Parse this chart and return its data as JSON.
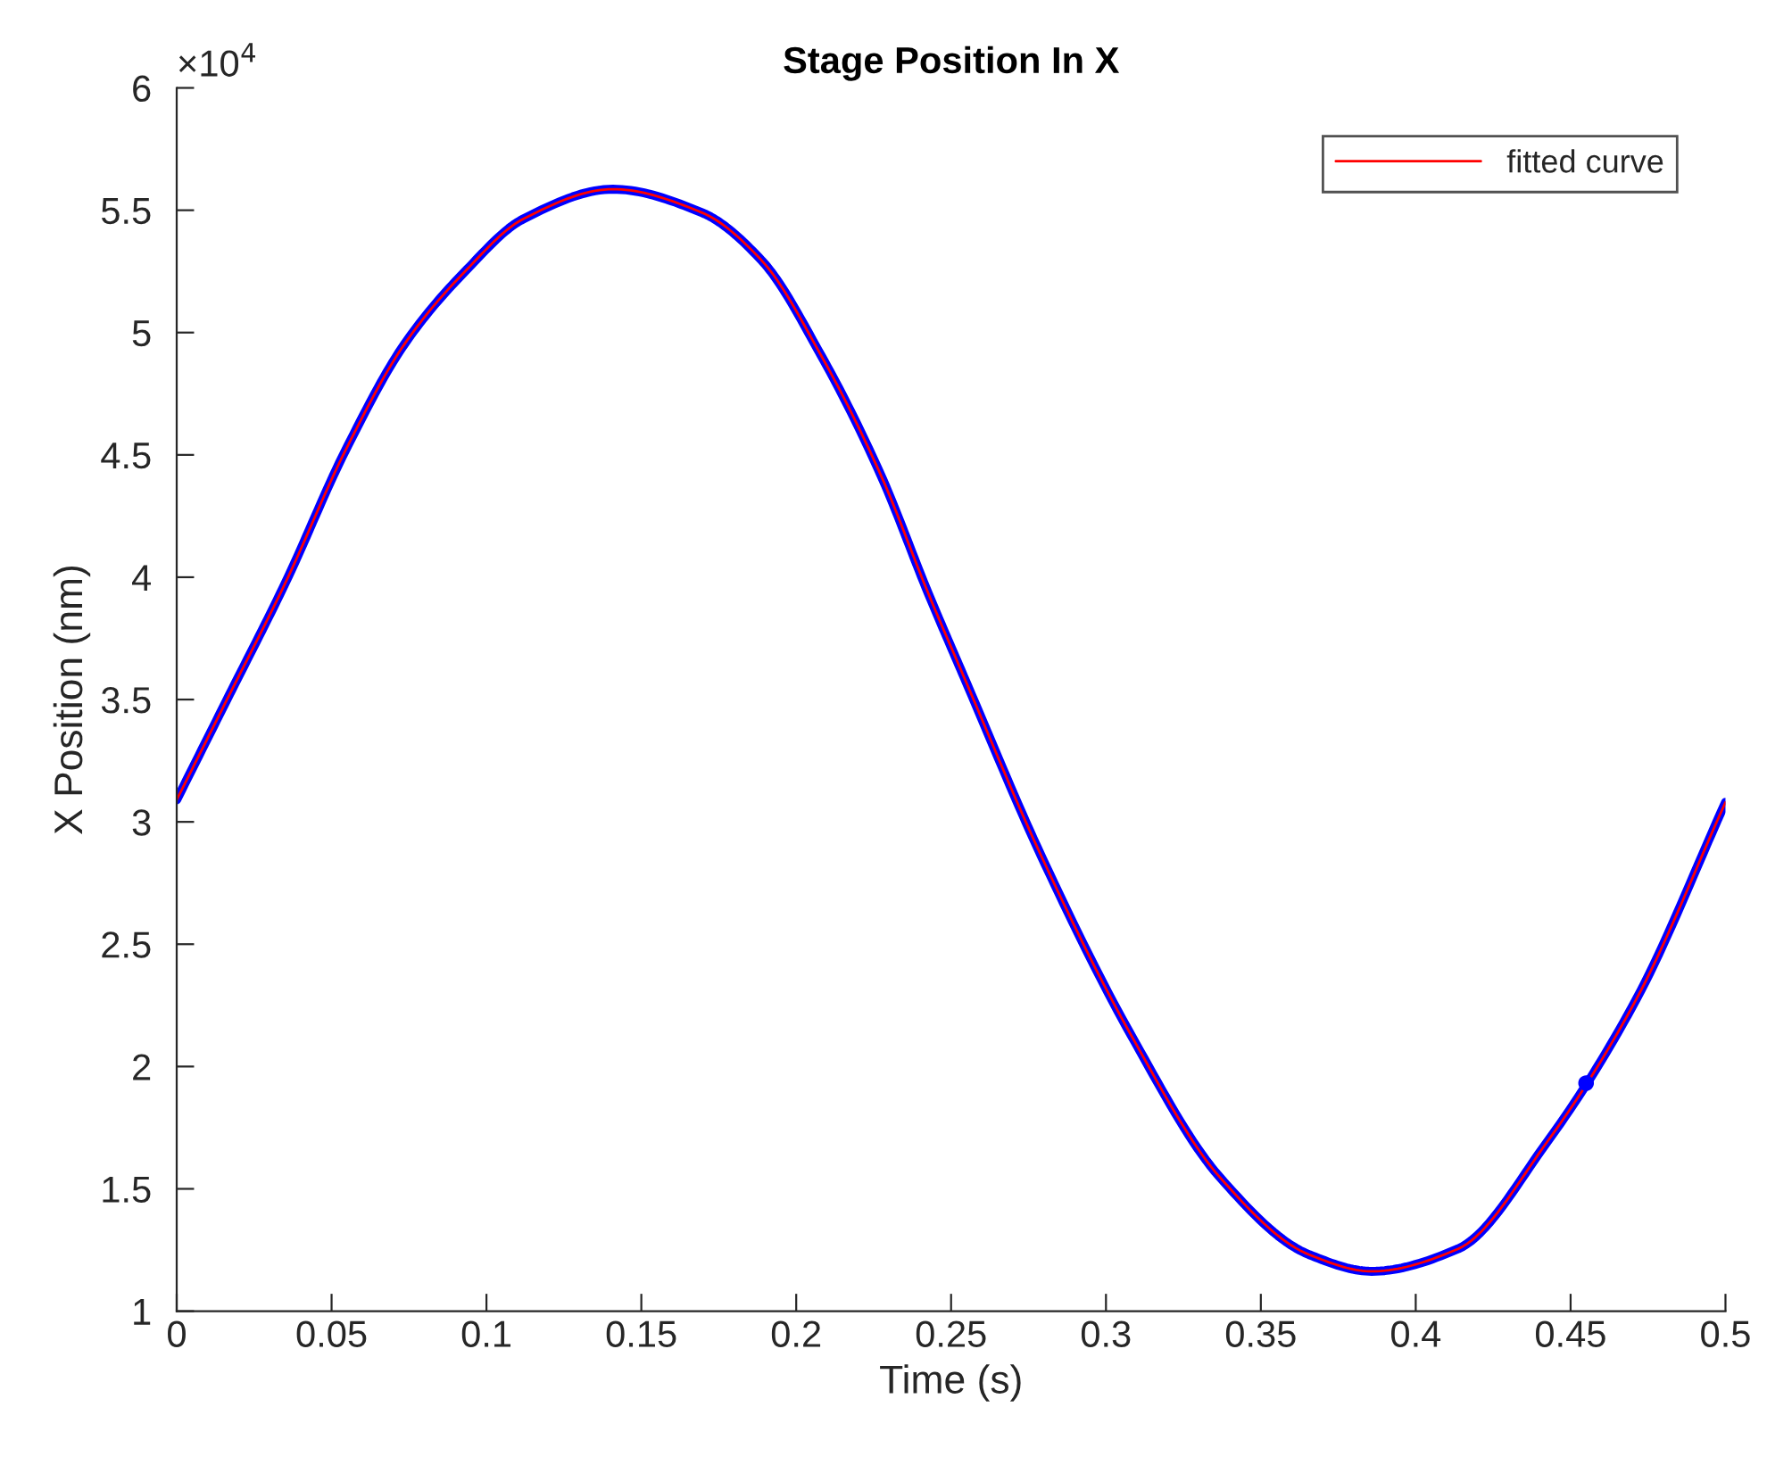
{
  "chart_data": {
    "type": "line",
    "title": "Stage Position In X",
    "xlabel": "Time (s)",
    "ylabel": "X Position (nm)",
    "annotations": [
      "×10$^{4}$"
    ],
    "x": [
      0,
      0.016,
      0.0352,
      0.0544,
      0.0736,
      0.0928,
      0.112,
      0.1408,
      0.1696,
      0.1889,
      0.2081,
      0.2273,
      0.2427,
      0.2542,
      0.2791,
      0.308,
      0.3368,
      0.3656,
      0.3858,
      0.4137,
      0.4425,
      0.4713,
      0.5
    ],
    "series": [
      {
        "color": "#0000ff",
        "values": [
          3.09,
          3.494,
          3.98,
          4.516,
          4.954,
          5.246,
          5.465,
          5.586,
          5.49,
          5.294,
          4.905,
          4.418,
          3.932,
          3.591,
          2.861,
          2.131,
          1.547,
          1.231,
          1.163,
          1.255,
          1.693,
          2.277,
          3.08
        ]
      },
      {
        "type": "scatter",
        "color": "#0000ff",
        "x": [
          0.455
        ],
        "values": [
          1.932
        ]
      },
      {
        "name": "fitted curve",
        "color": "#ff0000",
        "values": [
          3.09,
          3.494,
          3.98,
          4.516,
          4.954,
          5.246,
          5.465,
          5.586,
          5.49,
          5.294,
          4.905,
          4.418,
          3.932,
          3.591,
          2.861,
          2.131,
          1.547,
          1.231,
          1.163,
          1.255,
          1.693,
          2.277,
          3.08
        ]
      }
    ],
    "xlim": [
      0,
      0.5
    ],
    "xticks": [
      0,
      0.05,
      0.1,
      0.15,
      0.2,
      0.25,
      0.3,
      0.35,
      0.4,
      0.45,
      0.5
    ],
    "ylim": [
      1,
      6
    ],
    "yticks": [
      1,
      1.5,
      2,
      2.5,
      3,
      3.5,
      4,
      4.5,
      5,
      5.5,
      6
    ],
    "legend": "top right",
    "grid": false
  }
}
